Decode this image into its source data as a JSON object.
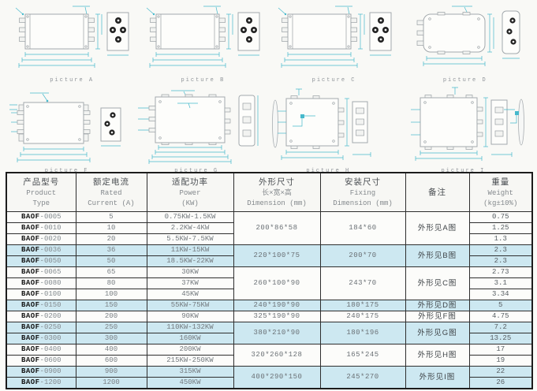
{
  "drawings": {
    "items": [
      {
        "label": "picture A",
        "type": "small"
      },
      {
        "label": "picture B",
        "type": "small"
      },
      {
        "label": "picture C",
        "type": "small"
      },
      {
        "label": "picture D",
        "type": "rounded"
      },
      {
        "label": "picture F",
        "type": "eared"
      },
      {
        "label": "picture G",
        "type": "wide"
      },
      {
        "label": "picture H",
        "type": "flanged"
      },
      {
        "label": "picture I",
        "type": "flanged-large"
      }
    ]
  },
  "table": {
    "headers": [
      {
        "id": "product",
        "lines": [
          "产品型号",
          "Product",
          "Type"
        ]
      },
      {
        "id": "current",
        "lines": [
          "额定电流",
          "Rated",
          "Current (A)"
        ]
      },
      {
        "id": "power",
        "lines": [
          "适配功率",
          "Power",
          "(KW)"
        ]
      },
      {
        "id": "dimension",
        "lines": [
          "外形尺寸",
          "长×宽×高",
          "Dimension (mm)"
        ]
      },
      {
        "id": "fixing",
        "lines": [
          "安装尺寸",
          "Fixing",
          "Dimension (mm)"
        ]
      },
      {
        "id": "note",
        "lines": [
          "备注"
        ]
      },
      {
        "id": "weight",
        "lines": [
          "重量",
          "Weight",
          "(kg±10%)"
        ]
      }
    ],
    "rows": [
      {
        "code": "BAOF-0005",
        "current": "5",
        "power": "0.75KW-1.5KW",
        "weight": "0.75"
      },
      {
        "code": "BAOF-0010",
        "current": "10",
        "power": "2.2KW-4KW",
        "weight": "1.25"
      },
      {
        "code": "BAOF-0020",
        "current": "20",
        "power": "5.5KW-7.5KW",
        "weight": "1.3"
      },
      {
        "code": "BAOF-0036",
        "current": "36",
        "power": "11KW-15KW",
        "weight": "2.3"
      },
      {
        "code": "BAOF-0050",
        "current": "50",
        "power": "18.5KW-22KW",
        "weight": "2.3"
      },
      {
        "code": "BAOF-0065",
        "current": "65",
        "power": "30KW",
        "weight": "2.73"
      },
      {
        "code": "BAOF-0080",
        "current": "80",
        "power": "37KW",
        "weight": "3.1"
      },
      {
        "code": "BAOF-0100",
        "current": "100",
        "power": "45KW",
        "weight": "3.34"
      },
      {
        "code": "BAOF-0150",
        "current": "150",
        "power": "55KW-75KW",
        "weight": "5"
      },
      {
        "code": "BAOF-0200",
        "current": "200",
        "power": "90KW",
        "weight": "4.75"
      },
      {
        "code": "BAOF-0250",
        "current": "250",
        "power": "110KW-132KW",
        "weight": "7.2"
      },
      {
        "code": "BAOF-0300",
        "current": "300",
        "power": "160KW",
        "weight": "13.25"
      },
      {
        "code": "BAOF-0400",
        "current": "400",
        "power": "200KW",
        "weight": "17"
      },
      {
        "code": "BAOF-0600",
        "current": "600",
        "power": "215KW-250KW",
        "weight": "19"
      },
      {
        "code": "BAOF-0900",
        "current": "900",
        "power": "315KW",
        "weight": "22"
      },
      {
        "code": "BAOF-1200",
        "current": "1200",
        "power": "450KW",
        "weight": "26"
      }
    ],
    "groups": [
      {
        "rows": [
          0,
          1,
          2
        ],
        "dim": "200*86*58",
        "fix": "184*60",
        "note": "外形见A图",
        "highlight": false
      },
      {
        "rows": [
          3,
          4
        ],
        "dim": "220*100*75",
        "fix": "200*70",
        "note": "外形见B图",
        "highlight": true
      },
      {
        "rows": [
          5,
          6,
          7
        ],
        "dim": "260*100*90",
        "fix": "243*70",
        "note": "外形见C图",
        "highlight": false
      },
      {
        "rows": [
          8
        ],
        "dim": "240*190*90",
        "fix": "180*175",
        "note": "外形见D图",
        "highlight": true
      },
      {
        "rows": [
          9
        ],
        "dim": "325*190*90",
        "fix": "240*175",
        "note": "外形见F图",
        "highlight": false
      },
      {
        "rows": [
          10,
          11
        ],
        "dim": "380*210*90",
        "fix": "180*196",
        "note": "外形见G图",
        "highlight": true
      },
      {
        "rows": [
          12,
          13
        ],
        "dim": "320*260*128",
        "fix": "165*245",
        "note": "外形见H图",
        "highlight": false
      },
      {
        "rows": [
          14,
          15
        ],
        "dim": "400*290*150",
        "fix": "245*270",
        "note": "外形见I图",
        "highlight": true
      }
    ]
  },
  "colors": {
    "highlight": "#cde8f1",
    "dimension_line": "#46b9cc",
    "border": "#2e2e2e"
  }
}
